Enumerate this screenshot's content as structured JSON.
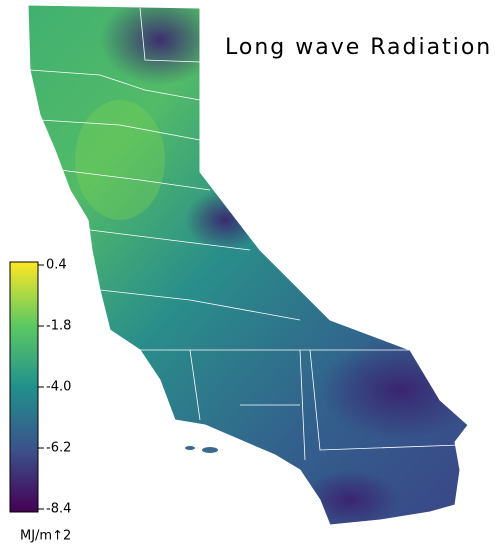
{
  "title": "Long wave Radiation",
  "colorbar": {
    "unit": "MJ/m↑2",
    "range": [
      -8.4,
      0.4
    ],
    "ticks": [
      0.4,
      -1.8,
      {
        "value": -4,
        "label": "-4.0"
      },
      -6.2,
      -8.4
    ]
  }
}
